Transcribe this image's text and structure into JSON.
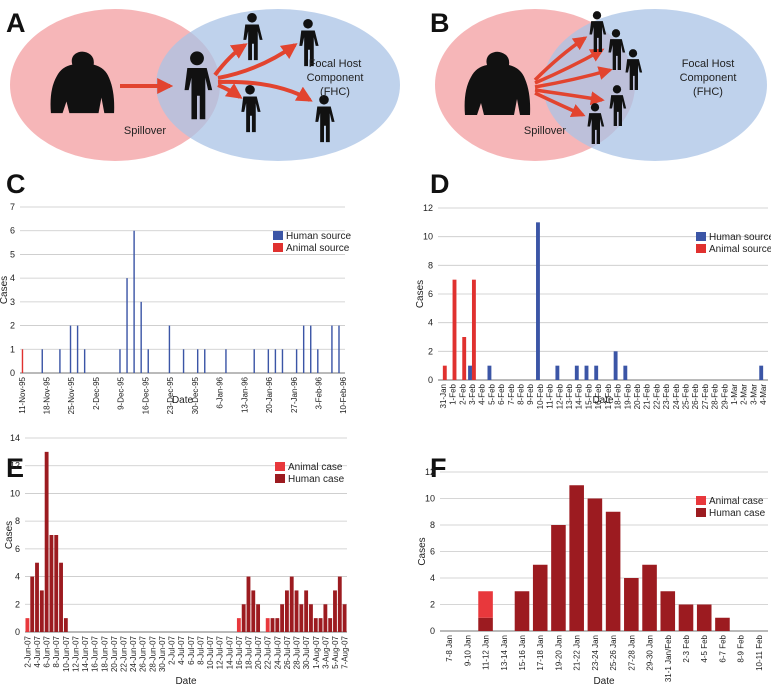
{
  "diagrams": [
    {
      "letter": "A",
      "spillover": "Spillover",
      "fhc": [
        "Focal Host",
        "Component",
        "(FHC)"
      ]
    },
    {
      "letter": "B",
      "spillover": "Spillover",
      "fhc": [
        "Focal Host",
        "Component",
        "(FHC)"
      ]
    }
  ],
  "chart_data": [
    {
      "type": "bar",
      "panel": "C",
      "xlabel": "Date",
      "ylabel": "Cases",
      "stacked": false,
      "grid": true,
      "legend": "upper right",
      "categories": [
        "11-Nov-95",
        null,
        null,
        null,
        null,
        null,
        null,
        "18-Nov-95",
        null,
        null,
        null,
        null,
        null,
        null,
        "25-Nov-95",
        null,
        null,
        null,
        null,
        null,
        null,
        "2-Dec-95",
        null,
        null,
        null,
        null,
        null,
        null,
        "9-Dec-95",
        null,
        null,
        null,
        null,
        null,
        null,
        "16-Dec-95",
        null,
        null,
        null,
        null,
        null,
        null,
        "23-Dec-95",
        null,
        null,
        null,
        null,
        null,
        null,
        "30-Dec-95",
        null,
        null,
        null,
        null,
        null,
        null,
        "6-Jan-96",
        null,
        null,
        null,
        null,
        null,
        null,
        "13-Jan-96",
        null,
        null,
        null,
        null,
        null,
        null,
        "20-Jan-96",
        null,
        null,
        null,
        null,
        null,
        null,
        "27-Jan-96",
        null,
        null,
        null,
        null,
        null,
        null,
        "3-Feb-96",
        null,
        null,
        null,
        null,
        null,
        null,
        "10-Feb-96"
      ],
      "series": [
        {
          "name": "Human source",
          "color": "#3b55a6",
          "values": [
            0,
            0,
            0,
            0,
            0,
            0,
            1,
            0,
            0,
            0,
            0,
            1,
            0,
            0,
            2,
            0,
            2,
            0,
            1,
            0,
            0,
            0,
            0,
            0,
            0,
            0,
            0,
            0,
            1,
            0,
            4,
            0,
            6,
            0,
            3,
            0,
            1,
            0,
            0,
            0,
            0,
            0,
            2,
            0,
            0,
            0,
            1,
            0,
            0,
            0,
            1,
            0,
            1,
            0,
            0,
            0,
            0,
            0,
            1,
            0,
            0,
            0,
            0,
            0,
            0,
            0,
            1,
            0,
            0,
            0,
            1,
            0,
            1,
            0,
            1,
            0,
            0,
            0,
            1,
            0,
            2,
            0,
            2,
            0,
            1,
            0,
            0,
            0,
            2,
            0,
            2,
            0
          ]
        },
        {
          "name": "Animal source",
          "color": "#e0312f",
          "values": [
            1,
            0,
            0,
            0,
            0,
            0,
            0,
            0,
            0,
            0,
            0,
            0,
            0,
            0,
            0,
            0,
            0,
            0,
            0,
            0,
            0,
            0,
            0,
            0,
            0,
            0,
            0,
            0,
            0,
            0,
            0,
            0,
            0,
            0,
            0,
            0,
            0,
            0,
            0,
            0,
            0,
            0,
            0,
            0,
            0,
            0,
            0,
            0,
            0,
            0,
            0,
            0,
            0,
            0,
            0,
            0,
            0,
            0,
            0,
            0,
            0,
            0,
            0,
            0,
            0,
            0,
            0,
            0,
            0,
            0,
            0,
            0,
            0,
            0,
            0,
            0,
            0,
            0,
            0,
            0,
            0,
            0,
            0,
            0,
            0,
            0,
            0,
            0,
            0,
            0,
            0,
            0
          ]
        }
      ],
      "ylim": [
        0,
        7
      ],
      "yticks": [
        0,
        1,
        2,
        3,
        4,
        5,
        6,
        7
      ]
    },
    {
      "type": "bar",
      "panel": "D",
      "xlabel": "Date",
      "ylabel": "Cases",
      "stacked": false,
      "grid": true,
      "legend": "upper right",
      "categories": [
        "31-Jan",
        "1-Feb",
        "2-Feb",
        "3-Feb",
        "4-Feb",
        "5-Feb",
        "6-Feb",
        "7-Feb",
        "8-Feb",
        "9-Feb",
        "10-Feb",
        "11-Feb",
        "12-Feb",
        "13-Feb",
        "14-Feb",
        "15-Feb",
        "16-Feb",
        "17-Feb",
        "18-Feb",
        "19-Feb",
        "20-Feb",
        "21-Feb",
        "22-Feb",
        "23-Feb",
        "24-Feb",
        "25-Feb",
        "26-Feb",
        "27-Feb",
        "28-Feb",
        "29-Feb",
        "1-Mar",
        "2-Mar",
        "3-Mar",
        "4-Mar"
      ],
      "series": [
        {
          "name": "Human source",
          "color": "#3b55a6",
          "values": [
            0,
            0,
            0,
            1,
            0,
            1,
            0,
            0,
            0,
            0,
            11,
            0,
            1,
            0,
            1,
            1,
            1,
            0,
            2,
            1,
            0,
            0,
            0,
            0,
            0,
            0,
            0,
            0,
            0,
            0,
            0,
            0,
            0,
            1
          ]
        },
        {
          "name": "Animal source",
          "color": "#e0312f",
          "values": [
            1,
            7,
            3,
            7,
            0,
            0,
            0,
            0,
            0,
            0,
            0,
            0,
            0,
            0,
            0,
            0,
            0,
            0,
            0,
            0,
            0,
            0,
            0,
            0,
            0,
            0,
            0,
            0,
            0,
            0,
            0,
            0,
            0,
            0
          ]
        }
      ],
      "ylim": [
        0,
        12
      ],
      "yticks": [
        0,
        2,
        4,
        6,
        8,
        10,
        12
      ]
    },
    {
      "type": "bar",
      "panel": "E",
      "xlabel": "Date",
      "ylabel": "Cases",
      "stacked": true,
      "grid": true,
      "legend": "upper right",
      "categories": [
        "2-Jun-07",
        null,
        "4-Jun-07",
        null,
        "6-Jun-07",
        null,
        "8-Jun-07",
        null,
        "10-Jun-07",
        null,
        "12-Jun-07",
        null,
        "14-Jun-07",
        null,
        "16-Jun-07",
        null,
        "18-Jun-07",
        null,
        "20-Jun-07",
        null,
        "22-Jun-07",
        null,
        "24-Jun-07",
        null,
        "26-Jun-07",
        null,
        "28-Jun-07",
        null,
        "30-Jun-07",
        null,
        "2-Jul-07",
        null,
        "4-Jul-07",
        null,
        "6-Jul-07",
        null,
        "8-Jul-07",
        null,
        "10-Jul-07",
        null,
        "12-Jul-07",
        null,
        "14-Jul-07",
        null,
        "16-Jul-07",
        null,
        "18-Jul-07",
        null,
        "20-Jul-07",
        null,
        "22-Jul-07",
        null,
        "24-Jul-07",
        null,
        "26-Jul-07",
        null,
        "28-Jul-07",
        null,
        "30-Jul-07",
        null,
        "1-Aug-07",
        null,
        "3-Aug-07",
        null,
        "5-Aug-07",
        null,
        "7-Aug-07"
      ],
      "series": [
        {
          "name": "Animal case",
          "color": "#e8383c",
          "values": [
            1,
            0,
            0,
            0,
            0,
            0,
            0,
            0,
            0,
            0,
            0,
            0,
            0,
            0,
            0,
            0,
            0,
            0,
            0,
            0,
            0,
            0,
            0,
            0,
            0,
            0,
            0,
            0,
            0,
            0,
            0,
            0,
            0,
            0,
            0,
            0,
            0,
            0,
            0,
            0,
            0,
            0,
            0,
            0,
            1,
            0,
            0,
            0,
            0,
            0,
            1,
            0,
            0,
            0,
            0,
            0,
            0,
            0,
            0,
            0,
            0,
            0,
            0,
            0,
            0,
            0,
            0
          ]
        },
        {
          "name": "Human case",
          "color": "#9c1b20",
          "values": [
            0,
            4,
            5,
            3,
            13,
            7,
            7,
            5,
            1,
            0,
            0,
            0,
            0,
            0,
            0,
            0,
            0,
            0,
            0,
            0,
            0,
            0,
            0,
            0,
            0,
            0,
            0,
            0,
            0,
            0,
            0,
            0,
            0,
            0,
            0,
            0,
            0,
            0,
            0,
            0,
            0,
            0,
            0,
            0,
            0,
            2,
            4,
            3,
            2,
            0,
            0,
            1,
            1,
            2,
            3,
            4,
            3,
            2,
            3,
            2,
            1,
            1,
            2,
            1,
            3,
            4,
            2
          ]
        }
      ],
      "ylim": [
        0,
        14
      ],
      "yticks": [
        0,
        2,
        4,
        6,
        8,
        10,
        12,
        14
      ]
    },
    {
      "type": "bar",
      "panel": "F",
      "xlabel": "Date",
      "ylabel": "Cases",
      "stacked": true,
      "grid": true,
      "legend": "upper right",
      "categories": [
        "7-8 Jan",
        "9-10 Jan",
        "11-12 Jan",
        "13-14 Jan",
        "15-16 Jan",
        "17-18 Jan",
        "19-20 Jan",
        "21-22 Jan",
        "23-24 Jan",
        "25-26 Jan",
        "27-28 Jan",
        "29-30 Jan",
        "31-1 Jan/Feb",
        "2-3 Feb",
        "4-5 Feb",
        "6-7 Feb",
        "8-9 Feb",
        "10-11 Feb"
      ],
      "series": [
        {
          "name": "Animal case",
          "color": "#e8383c",
          "values": [
            0,
            0,
            2,
            0,
            0,
            0,
            0,
            0,
            0,
            0,
            0,
            0,
            0,
            0,
            0,
            0,
            0,
            0
          ]
        },
        {
          "name": "Human case",
          "color": "#9c1b20",
          "values": [
            0,
            0,
            1,
            0,
            3,
            5,
            8,
            11,
            10,
            9,
            4,
            5,
            3,
            2,
            2,
            1,
            0,
            0
          ]
        }
      ],
      "ylim": [
        0,
        12
      ],
      "yticks": [
        0,
        2,
        4,
        6,
        8,
        10,
        12
      ]
    }
  ]
}
